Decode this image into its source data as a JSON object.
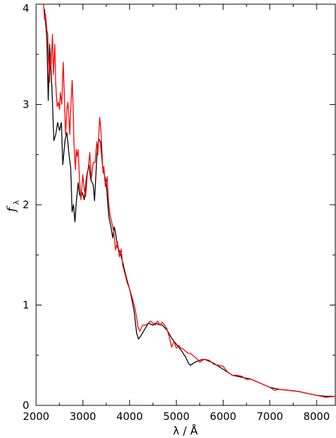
{
  "chart_data": {
    "type": "line",
    "xlabel": "λ / Å",
    "ylabel": {
      "main": "f",
      "sub": "λ"
    },
    "xlim": [
      2000,
      8400
    ],
    "ylim": [
      0,
      4
    ],
    "x_ticks": [
      2000,
      3000,
      4000,
      5000,
      6000,
      7000,
      8000
    ],
    "x_tick_labels": [
      "2000",
      "3000",
      "4000",
      "5000",
      "6000",
      "7000",
      "8000"
    ],
    "y_ticks": [
      0,
      1,
      2,
      3,
      4
    ],
    "y_tick_labels": [
      "0",
      "1",
      "2",
      "3",
      "4"
    ],
    "grid": false,
    "legend": "none",
    "series": [
      {
        "color": "#000000",
        "points": [
          [
            2180,
            3.95
          ],
          [
            2230,
            3.66
          ],
          [
            2260,
            3.04
          ],
          [
            2290,
            3.6
          ],
          [
            2310,
            3.42
          ],
          [
            2340,
            3.15
          ],
          [
            2380,
            2.64
          ],
          [
            2420,
            2.7
          ],
          [
            2460,
            2.82
          ],
          [
            2500,
            2.74
          ],
          [
            2540,
            2.82
          ],
          [
            2570,
            2.4
          ],
          [
            2620,
            2.65
          ],
          [
            2660,
            2.72
          ],
          [
            2700,
            2.52
          ],
          [
            2740,
            2.37
          ],
          [
            2770,
            1.93
          ],
          [
            2800,
            2.0
          ],
          [
            2830,
            1.83
          ],
          [
            2860,
            2.02
          ],
          [
            2900,
            2.22
          ],
          [
            2930,
            2.1
          ],
          [
            2960,
            2.08
          ],
          [
            2990,
            2.12
          ],
          [
            3030,
            2.05
          ],
          [
            3080,
            2.28
          ],
          [
            3130,
            2.4
          ],
          [
            3170,
            2.25
          ],
          [
            3220,
            2.2
          ],
          [
            3250,
            2.04
          ],
          [
            3300,
            2.48
          ],
          [
            3340,
            2.66
          ],
          [
            3380,
            2.62
          ],
          [
            3420,
            2.4
          ],
          [
            3460,
            2.3
          ],
          [
            3500,
            2.22
          ],
          [
            3530,
            2.03
          ],
          [
            3560,
            1.87
          ],
          [
            3600,
            1.78
          ],
          [
            3640,
            1.67
          ],
          [
            3670,
            1.78
          ],
          [
            3700,
            1.72
          ],
          [
            3740,
            1.58
          ],
          [
            3800,
            1.52
          ],
          [
            3850,
            1.43
          ],
          [
            3900,
            1.33
          ],
          [
            3950,
            1.24
          ],
          [
            4000,
            1.16
          ],
          [
            4050,
            1.05
          ],
          [
            4100,
            0.93
          ],
          [
            4150,
            0.72
          ],
          [
            4190,
            0.66
          ],
          [
            4250,
            0.7
          ],
          [
            4300,
            0.74
          ],
          [
            4350,
            0.78
          ],
          [
            4400,
            0.82
          ],
          [
            4450,
            0.81
          ],
          [
            4500,
            0.8
          ],
          [
            4550,
            0.82
          ],
          [
            4600,
            0.81
          ],
          [
            4700,
            0.8
          ],
          [
            4800,
            0.75
          ],
          [
            4900,
            0.67
          ],
          [
            5000,
            0.61
          ],
          [
            5100,
            0.55
          ],
          [
            5200,
            0.48
          ],
          [
            5260,
            0.42
          ],
          [
            5300,
            0.4
          ],
          [
            5360,
            0.42
          ],
          [
            5400,
            0.43
          ],
          [
            5500,
            0.45
          ],
          [
            5600,
            0.46
          ],
          [
            5700,
            0.44
          ],
          [
            5800,
            0.42
          ],
          [
            5900,
            0.39
          ],
          [
            6000,
            0.36
          ],
          [
            6100,
            0.33
          ],
          [
            6200,
            0.3
          ],
          [
            6400,
            0.28
          ],
          [
            6600,
            0.26
          ],
          [
            6800,
            0.22
          ],
          [
            7000,
            0.18
          ],
          [
            7200,
            0.16
          ],
          [
            7400,
            0.15
          ],
          [
            7600,
            0.14
          ],
          [
            7800,
            0.12
          ],
          [
            8000,
            0.1
          ],
          [
            8200,
            0.09
          ],
          [
            8400,
            0.09
          ]
        ]
      },
      {
        "color": "#ff0000",
        "points": [
          [
            2160,
            4.0
          ],
          [
            2180,
            3.85
          ],
          [
            2200,
            3.9
          ],
          [
            2230,
            3.74
          ],
          [
            2250,
            3.7
          ],
          [
            2260,
            3.5
          ],
          [
            2290,
            3.22
          ],
          [
            2300,
            3.48
          ],
          [
            2320,
            3.38
          ],
          [
            2350,
            3.7
          ],
          [
            2370,
            3.3
          ],
          [
            2400,
            3.6
          ],
          [
            2420,
            3.2
          ],
          [
            2450,
            2.98
          ],
          [
            2480,
            3.02
          ],
          [
            2500,
            2.95
          ],
          [
            2520,
            3.12
          ],
          [
            2550,
            3.0
          ],
          [
            2580,
            3.42
          ],
          [
            2600,
            3.15
          ],
          [
            2630,
            2.7
          ],
          [
            2660,
            2.96
          ],
          [
            2680,
            3.02
          ],
          [
            2700,
            2.88
          ],
          [
            2720,
            2.7
          ],
          [
            2740,
            2.95
          ],
          [
            2770,
            3.24
          ],
          [
            2790,
            3.0
          ],
          [
            2810,
            2.62
          ],
          [
            2840,
            2.35
          ],
          [
            2860,
            2.55
          ],
          [
            2880,
            2.48
          ],
          [
            2900,
            2.55
          ],
          [
            2930,
            2.25
          ],
          [
            2960,
            2.05
          ],
          [
            3000,
            2.3
          ],
          [
            3030,
            2.15
          ],
          [
            3060,
            2.08
          ],
          [
            3090,
            2.28
          ],
          [
            3120,
            2.38
          ],
          [
            3150,
            2.52
          ],
          [
            3180,
            2.25
          ],
          [
            3220,
            2.42
          ],
          [
            3260,
            2.42
          ],
          [
            3300,
            2.63
          ],
          [
            3320,
            2.5
          ],
          [
            3360,
            2.87
          ],
          [
            3380,
            2.78
          ],
          [
            3400,
            2.62
          ],
          [
            3430,
            2.32
          ],
          [
            3450,
            2.38
          ],
          [
            3480,
            2.18
          ],
          [
            3520,
            2.28
          ],
          [
            3550,
            2.02
          ],
          [
            3580,
            1.9
          ],
          [
            3620,
            1.82
          ],
          [
            3660,
            1.73
          ],
          [
            3700,
            1.55
          ],
          [
            3740,
            1.63
          ],
          [
            3780,
            1.48
          ],
          [
            3820,
            1.56
          ],
          [
            3850,
            1.4
          ],
          [
            3900,
            1.31
          ],
          [
            3950,
            1.22
          ],
          [
            4000,
            1.16
          ],
          [
            4050,
            1.08
          ],
          [
            4100,
            1.0
          ],
          [
            4150,
            0.88
          ],
          [
            4180,
            0.78
          ],
          [
            4220,
            0.74
          ],
          [
            4280,
            0.8
          ],
          [
            4350,
            0.8
          ],
          [
            4400,
            0.82
          ],
          [
            4450,
            0.84
          ],
          [
            4500,
            0.82
          ],
          [
            4550,
            0.8
          ],
          [
            4600,
            0.84
          ],
          [
            4650,
            0.8
          ],
          [
            4700,
            0.83
          ],
          [
            4750,
            0.8
          ],
          [
            4800,
            0.76
          ],
          [
            4850,
            0.68
          ],
          [
            4900,
            0.58
          ],
          [
            4950,
            0.64
          ],
          [
            5000,
            0.57
          ],
          [
            5050,
            0.6
          ],
          [
            5100,
            0.57
          ],
          [
            5150,
            0.56
          ],
          [
            5200,
            0.54
          ],
          [
            5250,
            0.52
          ],
          [
            5300,
            0.52
          ],
          [
            5350,
            0.5
          ],
          [
            5400,
            0.48
          ],
          [
            5450,
            0.46
          ],
          [
            5500,
            0.43
          ],
          [
            5600,
            0.46
          ],
          [
            5700,
            0.45
          ],
          [
            5800,
            0.41
          ],
          [
            5900,
            0.4
          ],
          [
            6000,
            0.39
          ],
          [
            6100,
            0.33
          ],
          [
            6200,
            0.3
          ],
          [
            6300,
            0.3
          ],
          [
            6400,
            0.29
          ],
          [
            6500,
            0.26
          ],
          [
            6600,
            0.26
          ],
          [
            6800,
            0.22
          ],
          [
            7000,
            0.18
          ],
          [
            7100,
            0.15
          ],
          [
            7200,
            0.16
          ],
          [
            7400,
            0.15
          ],
          [
            7600,
            0.14
          ],
          [
            7800,
            0.12
          ],
          [
            8000,
            0.1
          ],
          [
            8200,
            0.08
          ],
          [
            8400,
            0.09
          ]
        ]
      }
    ]
  }
}
